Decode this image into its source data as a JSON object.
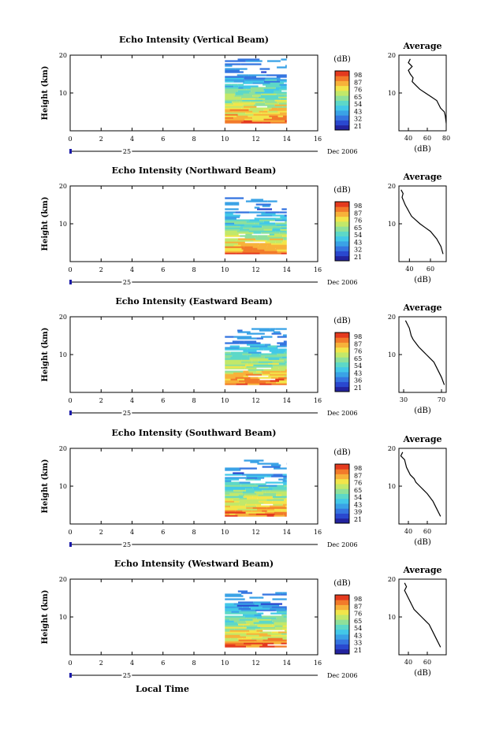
{
  "colors": {
    "background": "#ffffff",
    "axis": "#000000",
    "date_line": "#1a1aa8"
  },
  "colorbar_colors": [
    "#23239e",
    "#2a48cf",
    "#3575e0",
    "#3aa2e6",
    "#43c8e8",
    "#5dd8c8",
    "#8fe09a",
    "#c2e86a",
    "#f2e54a",
    "#f7b23a",
    "#f27a2a",
    "#e43a1e"
  ],
  "figure": {
    "xlabel": "Local Time",
    "date_label": "25",
    "month_label": "Dec 2006",
    "x_ticks": [
      "0",
      "2",
      "4",
      "6",
      "8",
      "10",
      "12",
      "14",
      "16"
    ],
    "y_ticks": [
      "20",
      "10"
    ],
    "ylabel": "Height (km)",
    "colorbar_unit": "(dB)",
    "avg_title": "Average",
    "avg_xlabel": "(dB)"
  },
  "chart_data": [
    {
      "type": "heatmap",
      "title": "Echo Intensity (Vertical Beam)",
      "xlim": [
        0,
        16
      ],
      "ylim": [
        0,
        20
      ],
      "data_x_range": [
        10,
        14
      ],
      "data_y_range": [
        2,
        19
      ],
      "colorbar_ticks": [
        "98",
        "87",
        "76",
        "65",
        "54",
        "43",
        "32",
        "21"
      ],
      "avg_profile": {
        "xlim": [
          30,
          80
        ],
        "x_ticks": [
          "40",
          "60",
          "80"
        ],
        "x": [
          42,
          40,
          44,
          40,
          42,
          45,
          44,
          48,
          52,
          58,
          64,
          70,
          74,
          78,
          79,
          80
        ],
        "y": [
          19,
          18,
          17,
          16,
          15,
          14,
          13,
          12,
          11,
          10,
          9,
          8,
          6,
          5,
          4,
          2
        ]
      }
    },
    {
      "type": "heatmap",
      "title": "Echo Intensity (Northward Beam)",
      "xlim": [
        0,
        16
      ],
      "ylim": [
        0,
        20
      ],
      "data_x_range": [
        10,
        14
      ],
      "data_y_range": [
        2,
        17
      ],
      "colorbar_ticks": [
        "98",
        "87",
        "76",
        "65",
        "54",
        "43",
        "32",
        "21"
      ],
      "avg_profile": {
        "xlim": [
          30,
          75
        ],
        "x_ticks": [
          "40",
          "60"
        ],
        "x": [
          32,
          34,
          33,
          36,
          38,
          40,
          42,
          46,
          50,
          55,
          60,
          66,
          70,
          72
        ],
        "y": [
          19,
          18,
          17,
          15,
          14,
          13,
          12,
          11,
          10,
          9,
          8,
          6,
          4,
          2
        ]
      }
    },
    {
      "type": "heatmap",
      "title": "Echo Intensity (Eastward Beam)",
      "xlim": [
        0,
        16
      ],
      "ylim": [
        0,
        20
      ],
      "data_x_range": [
        10,
        14
      ],
      "data_y_range": [
        2,
        17
      ],
      "colorbar_ticks": [
        "98",
        "87",
        "76",
        "65",
        "54",
        "43",
        "36",
        "21"
      ],
      "avg_profile": {
        "xlim": [
          25,
          75
        ],
        "x_ticks": [
          "30",
          "70"
        ],
        "x": [
          32,
          34,
          36,
          38,
          40,
          43,
          46,
          50,
          54,
          58,
          62,
          66,
          70,
          73
        ],
        "y": [
          19,
          18,
          17,
          15,
          14,
          13,
          12,
          11,
          10,
          9,
          8,
          6,
          4,
          2
        ]
      }
    },
    {
      "type": "heatmap",
      "title": "Echo Intensity (Southward Beam)",
      "xlim": [
        0,
        16
      ],
      "ylim": [
        0,
        20
      ],
      "data_x_range": [
        10,
        14
      ],
      "data_y_range": [
        2,
        17
      ],
      "colorbar_ticks": [
        "98",
        "87",
        "76",
        "65",
        "54",
        "43",
        "39",
        "21"
      ],
      "avg_profile": {
        "xlim": [
          30,
          80
        ],
        "x_ticks": [
          "40",
          "60"
        ],
        "x": [
          34,
          32,
          36,
          38,
          40,
          42,
          46,
          48,
          52,
          56,
          60,
          66,
          70,
          74
        ],
        "y": [
          19,
          18,
          17,
          15,
          14,
          13,
          12,
          11,
          10,
          9,
          8,
          6,
          4,
          2
        ]
      }
    },
    {
      "type": "heatmap",
      "title": "Echo Intensity (Westward Beam)",
      "xlim": [
        0,
        16
      ],
      "ylim": [
        0,
        20
      ],
      "data_x_range": [
        10,
        14
      ],
      "data_y_range": [
        2,
        17
      ],
      "colorbar_ticks": [
        "98",
        "87",
        "76",
        "65",
        "54",
        "43",
        "33",
        "21"
      ],
      "avg_profile": {
        "xlim": [
          30,
          80
        ],
        "x_ticks": [
          "40",
          "60"
        ],
        "x": [
          36,
          38,
          36,
          40,
          42,
          44,
          46,
          50,
          54,
          58,
          62,
          66,
          70,
          74
        ],
        "y": [
          19,
          18,
          17,
          15,
          14,
          13,
          12,
          11,
          10,
          9,
          8,
          6,
          4,
          2
        ]
      }
    }
  ]
}
